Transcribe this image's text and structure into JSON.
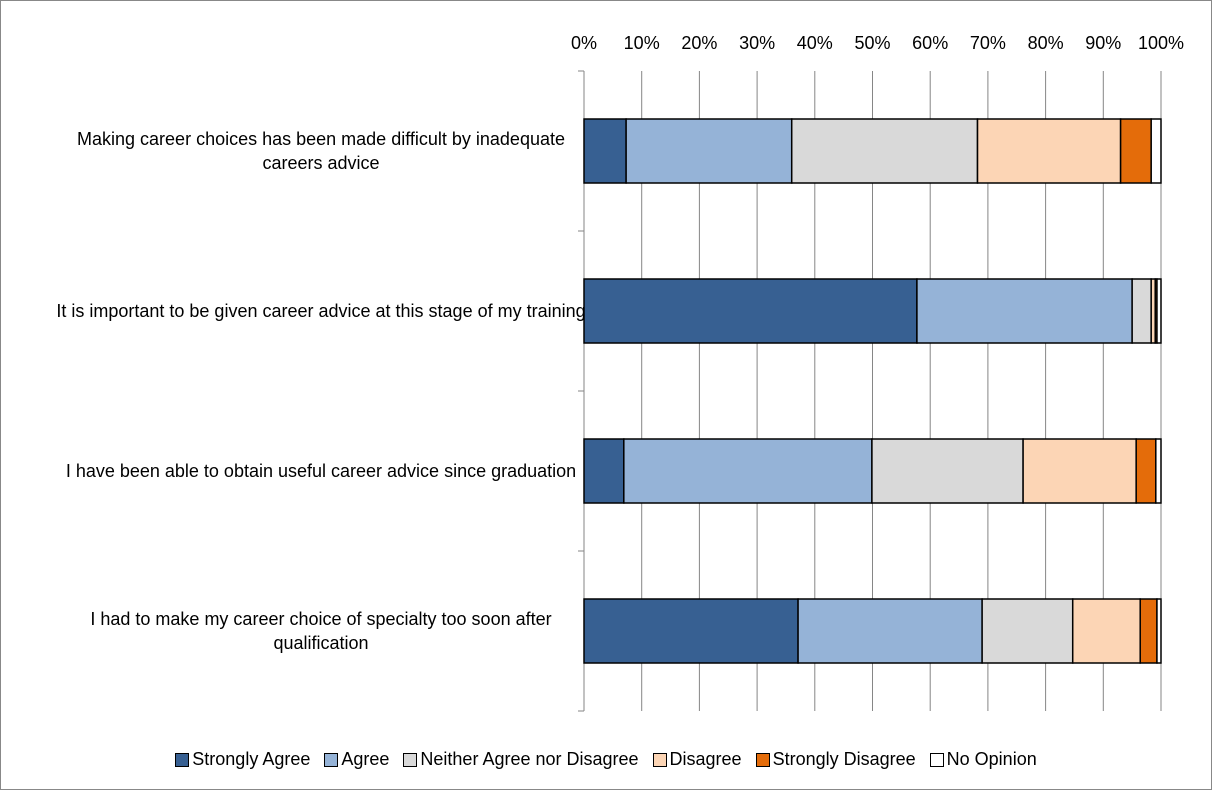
{
  "chart_data": {
    "type": "stacked-bar-horizontal",
    "categories": [
      "Making career choices has been made difficult by inadequate careers advice",
      "It is important to be given career advice at this stage of my training",
      "I have been able to obtain useful career advice since graduation",
      "I had to make my career choice of specialty too soon after qualification"
    ],
    "series": [
      {
        "name": "Strongly Agree",
        "color": "#376092",
        "values": [
          7.3,
          57.7,
          6.9,
          37.1
        ]
      },
      {
        "name": "Agree",
        "color": "#95b3d7",
        "values": [
          28.7,
          37.3,
          43.0,
          31.9
        ]
      },
      {
        "name": "Neither Agree nor Disagree",
        "color": "#d9d9d9",
        "values": [
          32.2,
          3.3,
          26.2,
          15.7
        ]
      },
      {
        "name": "Disagree",
        "color": "#fcd5b5",
        "values": [
          24.8,
          0.7,
          19.6,
          11.7
        ]
      },
      {
        "name": "Strongly Disagree",
        "color": "#e46c0a",
        "values": [
          5.3,
          0.3,
          3.4,
          2.9
        ]
      },
      {
        "name": "No Opinion",
        "color": "#ffffff",
        "values": [
          1.7,
          0.7,
          0.9,
          0.7
        ]
      }
    ],
    "xlim": [
      0,
      100
    ],
    "xticks": [
      {
        "value": 0,
        "label": "0%"
      },
      {
        "value": 10,
        "label": "10%"
      },
      {
        "value": 20,
        "label": "20%"
      },
      {
        "value": 30,
        "label": "30%"
      },
      {
        "value": 40,
        "label": "40%"
      },
      {
        "value": 50,
        "label": "50%"
      },
      {
        "value": 60,
        "label": "60%"
      },
      {
        "value": 70,
        "label": "70%"
      },
      {
        "value": 80,
        "label": "80%"
      },
      {
        "value": 90,
        "label": "90%"
      },
      {
        "value": 100,
        "label": "100%"
      }
    ],
    "grid": true,
    "legend": "bottom"
  }
}
